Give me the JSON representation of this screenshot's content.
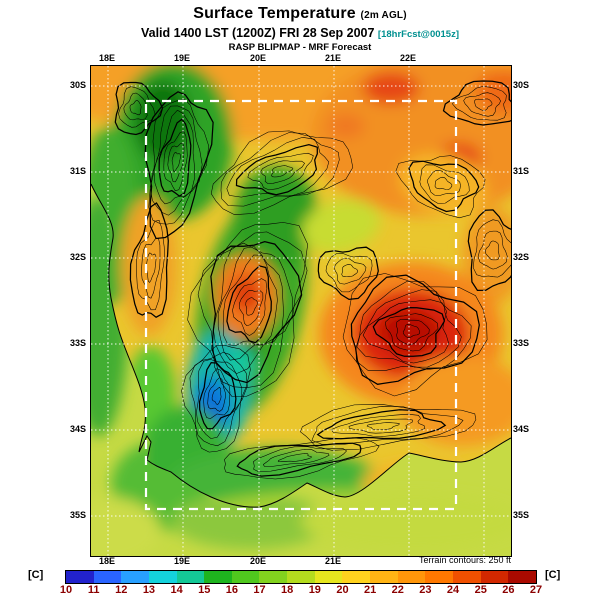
{
  "header": {
    "title": "Surface Temperature",
    "title_suffix": "(2m AGL)",
    "valid_line": "Valid 1400 LST (1200Z) FRI 28 Sep 2007",
    "fcst_tag": "[18hrFcst@0015z]",
    "model_line": "RASP BLIPMAP - MRF Forecast"
  },
  "map": {
    "lon_labels_top": [
      "18E",
      "19E",
      "20E",
      "21E",
      "22E"
    ],
    "lon_labels_bottom": [
      "18E",
      "19E",
      "20E",
      "21E"
    ],
    "lat_labels_left": [
      "30S",
      "31S",
      "32S",
      "33S",
      "34S",
      "35S"
    ],
    "lat_labels_right": [
      "30S",
      "31S",
      "32S",
      "33S",
      "34S",
      "35S"
    ],
    "terrain_note": "Terrain contours: 250 ft"
  },
  "colorbar": {
    "unit_left": "[C]",
    "unit_right": "[C]",
    "ticks": [
      "10",
      "11",
      "12",
      "13",
      "14",
      "15",
      "16",
      "17",
      "18",
      "19",
      "20",
      "21",
      "22",
      "23",
      "24",
      "25",
      "26",
      "27"
    ],
    "tick_color": "#8b0000",
    "colors": [
      "#2222cc",
      "#2a64ff",
      "#28a0ff",
      "#14d2dc",
      "#14c896",
      "#1eb41e",
      "#50c81e",
      "#82d21e",
      "#b4dc1e",
      "#e6e61e",
      "#ffd21e",
      "#ffb414",
      "#ff960a",
      "#ff7800",
      "#f05000",
      "#d22800",
      "#aa0a00"
    ]
  }
}
